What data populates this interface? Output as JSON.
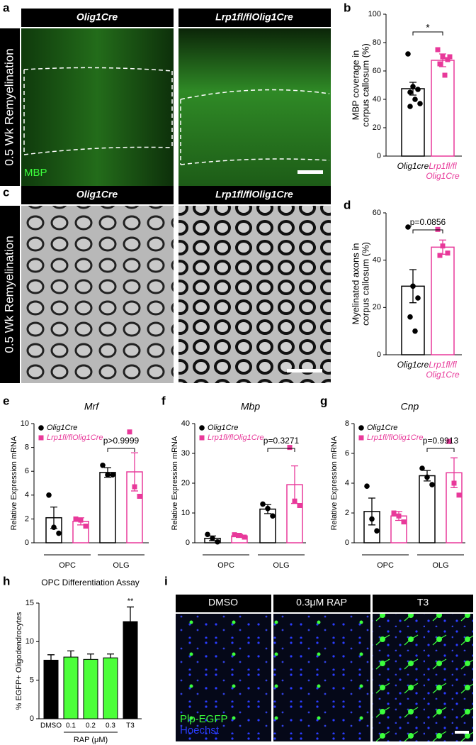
{
  "panel_letters": [
    "a",
    "b",
    "c",
    "d",
    "e",
    "f",
    "g",
    "h",
    "i"
  ],
  "images": [
    {
      "headers": [
        "Olig1Cre",
        "Lrp1fl/flOlig1Cre"
      ],
      "side_label": "0.5 Wk Remyelination",
      "stain": [
        "MBP"
      ]
    },
    {
      "headers": [
        "Olig1Cre",
        "Lrp1fl/flOlig1Cre"
      ],
      "side_label": "0.5 Wk Remyelination",
      "stain": []
    },
    {
      "headers": [
        "DMSO",
        "0.3μM RAP",
        "T3"
      ],
      "stain": [
        "Plp-EGFP",
        "Hoechst"
      ]
    }
  ],
  "chart_data": [
    {
      "type": "bar",
      "ylabel": [
        "MBP coverage in",
        "corpus callosum (%)"
      ],
      "categories": [
        "Olig1cre",
        "Lrp1fl/fl Olig1Cre"
      ],
      "values": [
        47.5,
        67.5
      ],
      "errors": [
        4.5,
        4.5
      ],
      "colors": [
        "#000000",
        "#e8399a"
      ],
      "markers": [
        "circle",
        "square"
      ],
      "style": "outline",
      "points": [
        [
          72,
          49,
          47,
          45,
          40,
          37,
          35
        ],
        [
          75,
          70,
          68,
          65,
          57,
          70
        ]
      ],
      "ylim": [
        0,
        100
      ],
      "yticks": [
        0,
        20,
        40,
        60,
        80,
        100
      ],
      "annotation": "*"
    },
    {
      "type": "bar",
      "ylabel": [
        "Myelinated axons in",
        "corpus callosum (%)"
      ],
      "categories": [
        "Olig1cre",
        "Lrp1fl/fl Olig1Cre"
      ],
      "values": [
        29,
        45.5
      ],
      "errors": [
        7,
        3
      ],
      "colors": [
        "#000000",
        "#e8399a"
      ],
      "markers": [
        "circle",
        "square"
      ],
      "style": "outline",
      "points": [
        [
          54,
          29,
          24,
          16,
          10
        ],
        [
          53,
          46,
          43,
          42
        ]
      ],
      "ylim": [
        0,
        60
      ],
      "yticks": [
        0,
        20,
        40,
        60
      ],
      "annotation": "p=0.0856"
    },
    {
      "type": "grouped_bar",
      "title": "Mrf",
      "ylabel": [
        "Relative Expression mRNA"
      ],
      "categories": [
        "OPC",
        "OLG"
      ],
      "series": [
        {
          "name": "Olig1Cre",
          "color": "#000000",
          "marker": "circle",
          "values": [
            2.1,
            5.9
          ],
          "errors": [
            0.9,
            0.4
          ],
          "points": [
            [
              4.0,
              1.3,
              0.8
            ],
            [
              6.5,
              5.7,
              5.7
            ]
          ]
        },
        {
          "name": "Lrp1fl/flOlig1Cre",
          "color": "#e8399a",
          "marker": "square",
          "values": [
            1.8,
            5.95
          ],
          "errors": [
            0.3,
            1.6
          ],
          "points": [
            [
              2.0,
              1.9,
              1.4
            ],
            [
              9.3,
              4.7,
              3.9
            ]
          ]
        }
      ],
      "ylim": [
        0,
        10
      ],
      "yticks": [
        0,
        2,
        4,
        6,
        8,
        10
      ],
      "annotation": "p>0.9999"
    },
    {
      "type": "grouped_bar",
      "title": "Mbp",
      "ylabel": [
        "Relative Expression mRNA"
      ],
      "categories": [
        "OPC",
        "OLG"
      ],
      "series": [
        {
          "name": "Olig1Cre",
          "color": "#000000",
          "marker": "circle",
          "values": [
            1.5,
            11.3
          ],
          "errors": [
            0.8,
            1.5
          ],
          "points": [
            [
              2.8,
              1.5,
              0.3
            ],
            [
              13,
              11.5,
              9
            ]
          ]
        },
        {
          "name": "Lrp1fl/flOlig1Cre",
          "color": "#e8399a",
          "marker": "square",
          "values": [
            2.3,
            19.5
          ],
          "errors": [
            0.5,
            6.3
          ],
          "points": [
            [
              2.7,
              2.5,
              1.9
            ],
            [
              32,
              14,
              12.5
            ]
          ]
        }
      ],
      "ylim": [
        0,
        40
      ],
      "yticks": [
        0,
        10,
        20,
        30,
        40
      ],
      "annotation": "p=0.3271"
    },
    {
      "type": "grouped_bar",
      "title": "Cnp",
      "ylabel": [
        "Relative Expression mRNA"
      ],
      "categories": [
        "OPC",
        "OLG"
      ],
      "series": [
        {
          "name": "Olig1Cre",
          "color": "#000000",
          "marker": "circle",
          "values": [
            2.1,
            4.5
          ],
          "errors": [
            0.9,
            0.35
          ],
          "points": [
            [
              3.8,
              1.6,
              0.8
            ],
            [
              5.0,
              4.4,
              3.9
            ]
          ]
        },
        {
          "name": "Lrp1fl/flOlig1Cre",
          "color": "#e8399a",
          "marker": "square",
          "values": [
            1.8,
            4.7
          ],
          "errors": [
            0.3,
            1.0
          ],
          "points": [
            [
              2.0,
              1.8,
              1.4
            ],
            [
              6.8,
              4.0,
              3.2
            ]
          ]
        }
      ],
      "ylim": [
        0,
        8
      ],
      "yticks": [
        0,
        2,
        4,
        6,
        8
      ],
      "annotation": "p=0.9913"
    },
    {
      "type": "bar",
      "title": "OPC Differentiation Assay",
      "ylabel": [
        "% EGFP+ Oligodendrocytes"
      ],
      "xlabel": "RAP (μM)",
      "categories": [
        "DMSO",
        "0.1",
        "0.2",
        "0.3",
        "T3"
      ],
      "values": [
        7.6,
        8.0,
        7.7,
        7.9,
        12.6
      ],
      "errors": [
        0.7,
        0.8,
        0.7,
        0.5,
        1.9
      ],
      "colors": [
        "#000000",
        "#4cff3a",
        "#4cff3a",
        "#4cff3a",
        "#000000"
      ],
      "style": "filled",
      "ylim": [
        0,
        15
      ],
      "yticks": [
        0,
        5,
        10,
        15
      ],
      "annotation": "**"
    }
  ]
}
